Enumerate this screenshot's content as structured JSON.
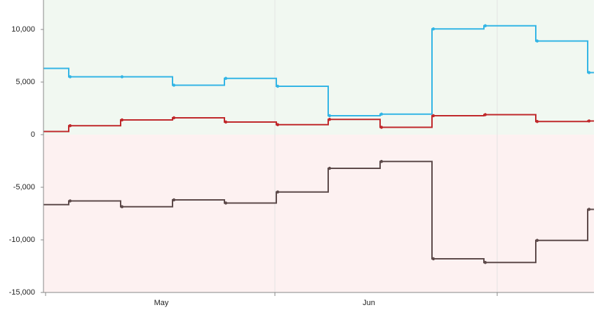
{
  "chart_data": {
    "type": "step-line",
    "categories": [
      null,
      null,
      null,
      "May",
      null,
      null,
      null,
      "Jun",
      null,
      null,
      null,
      null
    ],
    "series": [
      {
        "color": "#33b5e5",
        "values": [
          6300,
          5500,
          5500,
          4700,
          5350,
          4600,
          1800,
          1950,
          10050,
          10350,
          8900,
          5900
        ]
      },
      {
        "color": "#c0282b",
        "values": [
          300,
          850,
          1400,
          1600,
          1200,
          950,
          1450,
          700,
          1800,
          1900,
          1250,
          1300
        ]
      },
      {
        "color": "#5d4a4a",
        "values": [
          -6650,
          -6300,
          -6850,
          -6200,
          -6500,
          -5450,
          -3200,
          -2550,
          -11800,
          -12150,
          -10050,
          -7100
        ]
      }
    ],
    "ylim": [
      -15000,
      12800
    ],
    "yticks": [
      {
        "value": -15000,
        "label": "-15,000"
      },
      {
        "value": -10000,
        "label": "-10,000"
      },
      {
        "value": -5000,
        "label": "-5,000"
      },
      0,
      {
        "value": 5000,
        "label": "5,000"
      },
      {
        "value": 10000,
        "label": "10,000"
      }
    ],
    "positive_color": "#f1f8f1",
    "negative_color": "#fdf1f1"
  }
}
